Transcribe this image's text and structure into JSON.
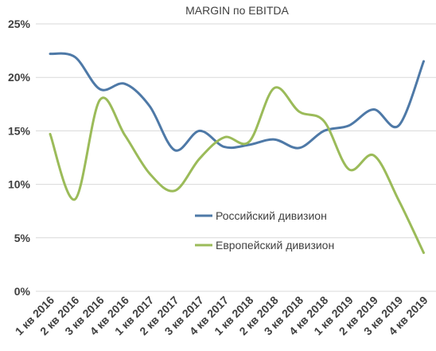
{
  "chart_data": {
    "type": "line",
    "title": "MARGIN по EBITDA",
    "xlabel": "",
    "ylabel": "",
    "categories": [
      "1 кв 2016",
      "2 кв 2016",
      "3 кв 2016",
      "4 кв 2016",
      "1 кв 2017",
      "2 кв 2017",
      "3 кв 2017",
      "4 кв 2017",
      "1 кв 2018",
      "2 кв 2018",
      "3 кв 2018",
      "4 кв 2018",
      "1 кв 2019",
      "2 кв 2019",
      "3 кв 2019",
      "4 кв 2019"
    ],
    "yticks": [
      "0%",
      "5%",
      "10%",
      "15%",
      "20%",
      "25%"
    ],
    "ylim": [
      0,
      25
    ],
    "grid": true,
    "legend_position": "center-right",
    "series": [
      {
        "name": "Российский дивизион",
        "color": "#4e79a7",
        "values": [
          22.2,
          21.9,
          18.9,
          19.4,
          17.3,
          13.2,
          15.0,
          13.5,
          13.7,
          14.2,
          13.4,
          15.0,
          15.5,
          17.0,
          15.5,
          21.5
        ]
      },
      {
        "name": "Европейский дивизион",
        "color": "#9bbb59",
        "values": [
          14.7,
          8.6,
          17.9,
          14.6,
          11.0,
          9.4,
          12.4,
          14.4,
          14.0,
          19.0,
          16.8,
          15.9,
          11.4,
          12.7,
          8.5,
          3.6
        ]
      }
    ]
  }
}
